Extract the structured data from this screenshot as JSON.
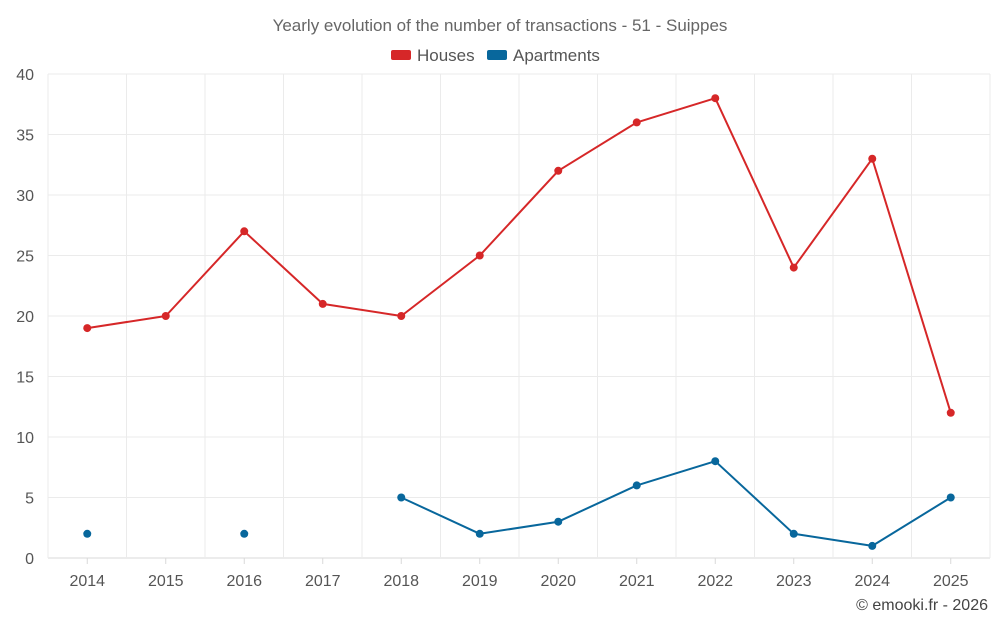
{
  "chart_data": {
    "type": "line",
    "title": "Yearly evolution of the number of transactions - 51 - Suippes",
    "categories": [
      "2014",
      "2015",
      "2016",
      "2017",
      "2018",
      "2019",
      "2020",
      "2021",
      "2022",
      "2023",
      "2024",
      "2025"
    ],
    "series": [
      {
        "name": "Houses",
        "color": "#d62728",
        "values": [
          19,
          20,
          27,
          21,
          20,
          25,
          32,
          36,
          38,
          24,
          33,
          12
        ]
      },
      {
        "name": "Apartments",
        "color": "#08679c",
        "values": [
          2,
          null,
          2,
          null,
          5,
          2,
          3,
          6,
          8,
          2,
          1,
          5
        ]
      }
    ],
    "yticks": [
      0,
      5,
      10,
      15,
      20,
      25,
      30,
      35,
      40
    ],
    "ylim": [
      0,
      40
    ],
    "xlabel": "",
    "ylabel": "",
    "grid": true,
    "legend_position": "top-center"
  },
  "credit": "© emooki.fr - 2026"
}
